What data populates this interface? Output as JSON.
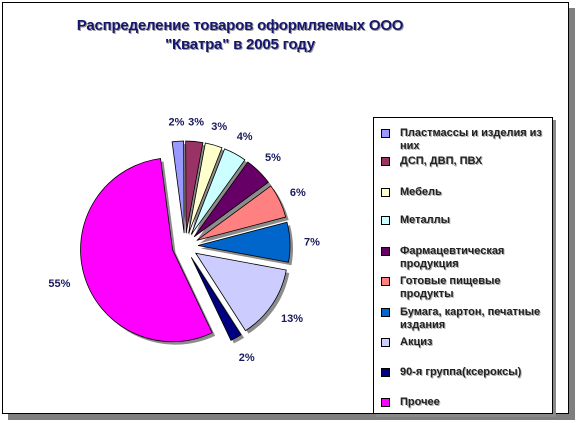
{
  "chart_data": {
    "type": "pie",
    "title": "Распределение товаров оформляемых ООО \"Кватра\" в 2005 году",
    "title_lines": [
      "Распределение товаров оформляемых ООО",
      "\"Кватра\" в 2005 году"
    ],
    "legend_position": "right",
    "slices": [
      {
        "label": "Пластмассы  и изделия  из них",
        "value": 2,
        "display": "2%",
        "color": "#9999ff"
      },
      {
        "label": "ДСП, ДВП, ПВХ",
        "value": 3,
        "display": "3%",
        "color": "#993366"
      },
      {
        "label": "Мебель",
        "value": 3,
        "display": "3%",
        "color": "#ffffcc"
      },
      {
        "label": "Металлы",
        "value": 4,
        "display": "4%",
        "color": "#ccffff"
      },
      {
        "label": "Фармацевтическая продукция",
        "value": 5,
        "display": "5%",
        "color": "#660066"
      },
      {
        "label": "Готовые  пищевые продукты",
        "value": 6,
        "display": "6%",
        "color": "#ff8080"
      },
      {
        "label": "Бумага,  картон, печатные  издания",
        "value": 7,
        "display": "7%",
        "color": "#0066cc"
      },
      {
        "label": "Акциз",
        "value": 13,
        "display": "13%",
        "color": "#ccccff"
      },
      {
        "label": "90-я группа(ксероксы)",
        "value": 2,
        "display": "2%",
        "color": "#000080"
      },
      {
        "label": "Прочее",
        "value": 55,
        "display": "55%",
        "color": "#ff00ff"
      }
    ]
  }
}
